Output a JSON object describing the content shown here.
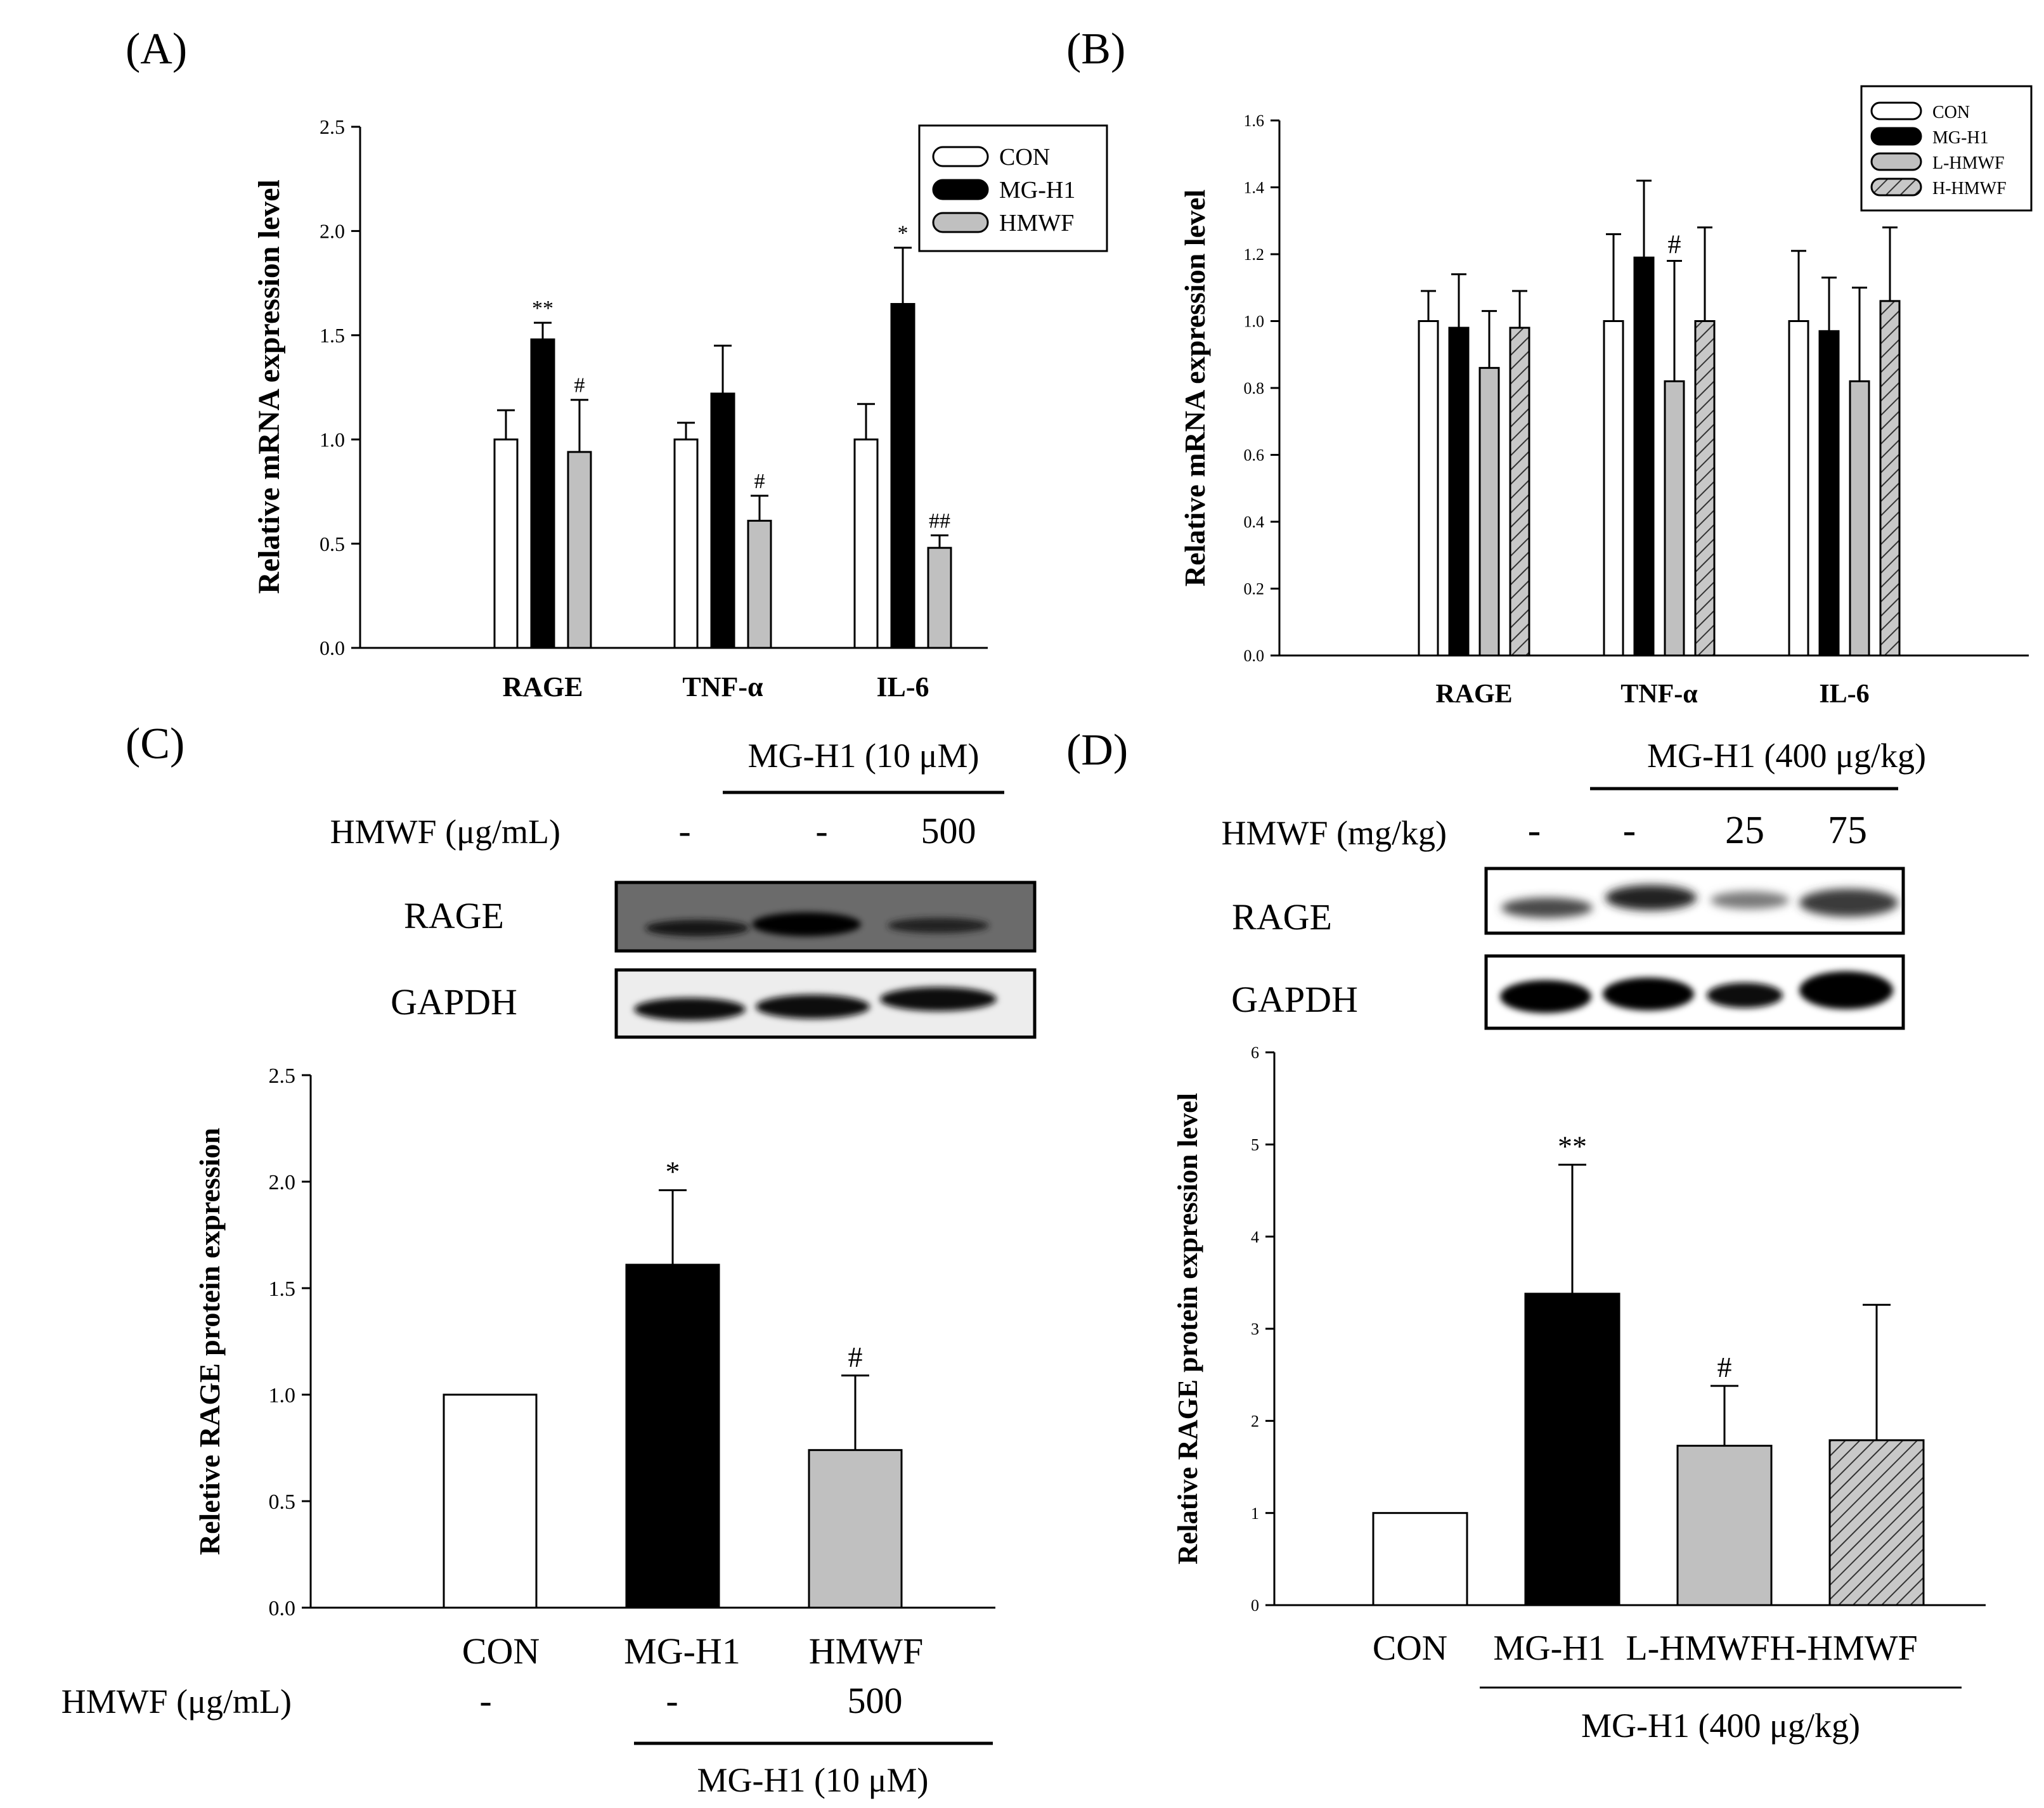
{
  "panels": {
    "A": {
      "label": "(A)",
      "chart_data": {
        "type": "bar",
        "ylabel": "Relative mRNA expression level",
        "xlabel": "",
        "ylim": [
          0,
          2.5
        ],
        "yticks": [
          "0.0",
          "0.5",
          "1.0",
          "1.5",
          "2.0",
          "2.5"
        ],
        "categories": [
          "RAGE",
          "TNF-α",
          "IL-6"
        ],
        "series": [
          {
            "name": "CON",
            "values": [
              1.0,
              1.0,
              1.0
            ],
            "errors": [
              0.14,
              0.08,
              0.17
            ],
            "marks": [
              "",
              "",
              ""
            ],
            "pattern": "white"
          },
          {
            "name": "MG-H1",
            "values": [
              1.48,
              1.22,
              1.65
            ],
            "errors": [
              0.08,
              0.23,
              0.27
            ],
            "marks": [
              "**",
              "",
              "*"
            ],
            "pattern": "black"
          },
          {
            "name": "HMWF",
            "values": [
              0.94,
              0.61,
              0.48
            ],
            "errors": [
              0.25,
              0.12,
              0.06
            ],
            "marks": [
              "#",
              "#",
              "##"
            ],
            "pattern": "gray"
          }
        ],
        "legend": [
          "CON",
          "MG-H1",
          "HMWF"
        ],
        "legend_position": "top-right"
      }
    },
    "B": {
      "label": "(B)",
      "chart_data": {
        "type": "bar",
        "ylabel": "Relative mRNA expression level",
        "xlabel": "",
        "ylim": [
          0,
          1.6
        ],
        "yticks": [
          "0.0",
          "0.2",
          "0.4",
          "0.6",
          "0.8",
          "1.0",
          "1.2",
          "1.4",
          "1.6"
        ],
        "categories": [
          "RAGE",
          "TNF-α",
          "IL-6"
        ],
        "series": [
          {
            "name": "CON",
            "values": [
              1.0,
              1.0,
              1.0
            ],
            "errors": [
              0.09,
              0.26,
              0.21
            ],
            "marks": [
              "",
              "",
              ""
            ],
            "pattern": "white"
          },
          {
            "name": "MG-H1",
            "values": [
              0.98,
              1.19,
              0.97
            ],
            "errors": [
              0.16,
              0.23,
              0.16
            ],
            "marks": [
              "",
              "",
              ""
            ],
            "pattern": "black"
          },
          {
            "name": "L-HMWF",
            "values": [
              0.86,
              0.82,
              0.82
            ],
            "errors": [
              0.17,
              0.36,
              0.28
            ],
            "marks": [
              "",
              "#",
              ""
            ],
            "pattern": "gray"
          },
          {
            "name": "H-HMWF",
            "values": [
              0.98,
              1.0,
              1.06
            ],
            "errors": [
              0.11,
              0.28,
              0.22
            ],
            "marks": [
              "",
              "",
              ""
            ],
            "pattern": "hatch"
          }
        ],
        "legend": [
          "CON",
          "MG-H1",
          "L-HMWF",
          "H-HMWF"
        ],
        "legend_position": "top-right"
      }
    },
    "C": {
      "label": "(C)",
      "treatment_header": "MG-H1 (10 μM)",
      "row_label": "HMWF (μg/mL)",
      "row_values": [
        "-",
        "-",
        "500"
      ],
      "blot_labels": [
        "RAGE",
        "GAPDH"
      ],
      "chart_data": {
        "type": "bar",
        "ylabel": "Reletive RAGE protein expression",
        "xlabel": "",
        "ylim": [
          0,
          2.5
        ],
        "yticks": [
          "0.0",
          "0.5",
          "1.0",
          "1.5",
          "2.0",
          "2.5"
        ],
        "categories": [
          "CON",
          "MG-H1",
          "HMWF"
        ],
        "values": [
          1.0,
          1.61,
          0.74
        ],
        "errors": [
          0,
          0.35,
          0.35
        ],
        "marks": [
          "",
          "*",
          "#"
        ],
        "patterns": [
          "white",
          "black",
          "gray"
        ]
      },
      "footer_row_label": "HMWF (μg/mL)",
      "footer_row_values": [
        "-",
        "-",
        "500"
      ],
      "footer_treatment": "MG-H1 (10 μM)"
    },
    "D": {
      "label": "(D)",
      "treatment_header": "MG-H1 (400 μg/kg)",
      "row_label": "HMWF (mg/kg)",
      "row_values": [
        "-",
        "-",
        "25",
        "75"
      ],
      "blot_labels": [
        "RAGE",
        "GAPDH"
      ],
      "chart_data": {
        "type": "bar",
        "ylabel": "Relative RAGE protein expression level",
        "xlabel": "",
        "ylim": [
          0,
          6
        ],
        "yticks": [
          "0",
          "1",
          "2",
          "3",
          "4",
          "5",
          "6"
        ],
        "categories": [
          "CON",
          "MG-H1",
          "L-HMWF",
          "H-HMWF"
        ],
        "values": [
          1.0,
          3.38,
          1.73,
          1.79
        ],
        "errors": [
          0,
          1.4,
          0.65,
          1.47
        ],
        "marks": [
          "",
          "**",
          "#",
          ""
        ],
        "patterns": [
          "white",
          "black",
          "gray",
          "hatch"
        ]
      },
      "footer_treatment": "MG-H1 (400 μg/kg)"
    }
  }
}
